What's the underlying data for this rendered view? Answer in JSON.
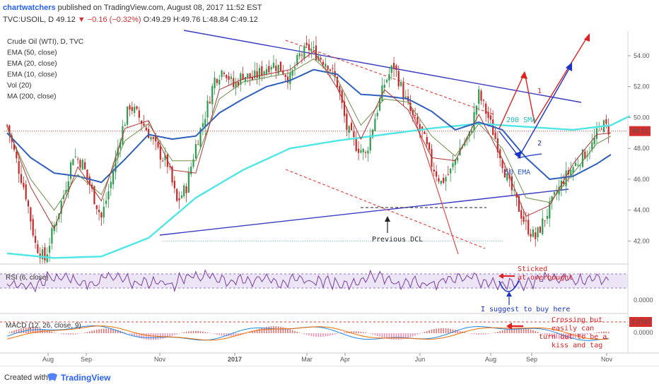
{
  "header": {
    "author": "chartwatchers",
    "published_text": "published on TradingView.com, August 08, 2017 11:52 EST",
    "symbol": "TVC:USOIL, D",
    "price": "49.12",
    "change": "−0.16 (−0.32%)",
    "ohlc": "O:49.29 H:49.76 L:48.84 C:49.12"
  },
  "legend": [
    "Crude Oil (WTI), D, TVC",
    "EMA (50, close)",
    "EMA (20, close)",
    "EMA (10, close)",
    "Vol (20)",
    "MA (200, close)"
  ],
  "price_label": "49.12",
  "macd_label": "1.0747",
  "panes": {
    "rsi_title": "RSI (6, close)",
    "macd_title": "MACD (12, 26, close, 9)"
  },
  "annotations": {
    "sma200": "200 SMA",
    "ema50": "50 EMA",
    "prev_dcl": "Previous DCL",
    "scenario1": "1",
    "scenario2": "2",
    "rsi_note": [
      "Sticked",
      "at overbought"
    ],
    "buy_note": "I suggest to buy here",
    "macd_note": [
      "Crossing but",
      "easily can",
      "turn out to be a",
      "kiss and tag"
    ]
  },
  "footer": {
    "created": "Created with",
    "brand": "TradingView"
  },
  "colors": {
    "up": "#2e9c4f",
    "down": "#c62828",
    "ema50": "#2f5fbd",
    "ema20": "#6f8f4a",
    "ema10": "#b23434",
    "ma200": "#4ee6e6",
    "trend": "#3b3bc4",
    "annotation_red": "#e02020",
    "annotation_blue": "#1a35c8"
  },
  "chart_data": {
    "type": "candlestick",
    "x_labels": [
      "Aug",
      "Sep",
      "Nov",
      "2017",
      "Mar",
      "Apr",
      "Jun",
      "Aug",
      "Sep",
      "Nov"
    ],
    "y_ticks": [
      42.0,
      44.0,
      46.0,
      48.0,
      50.0,
      52.0,
      54.0
    ],
    "ylim": [
      40.6,
      55.6
    ],
    "last_price": 49.12,
    "close_path": [
      [
        0,
        49.5
      ],
      [
        4,
        47.2
      ],
      [
        8,
        45.0
      ],
      [
        12,
        41.8
      ],
      [
        16,
        40.8
      ],
      [
        20,
        43.0
      ],
      [
        24,
        45.0
      ],
      [
        28,
        47.6
      ],
      [
        32,
        47.0
      ],
      [
        36,
        45.2
      ],
      [
        40,
        43.5
      ],
      [
        44,
        45.8
      ],
      [
        48,
        48.8
      ],
      [
        52,
        50.8
      ],
      [
        56,
        50.0
      ],
      [
        60,
        49.0
      ],
      [
        64,
        47.8
      ],
      [
        68,
        47.0
      ],
      [
        72,
        44.5
      ],
      [
        76,
        45.5
      ],
      [
        80,
        48.2
      ],
      [
        84,
        50.2
      ],
      [
        88,
        52.5
      ],
      [
        92,
        53.2
      ],
      [
        96,
        52.0
      ],
      [
        100,
        52.8
      ],
      [
        104,
        52.5
      ],
      [
        108,
        53.0
      ],
      [
        112,
        53.5
      ],
      [
        116,
        53.2
      ],
      [
        120,
        52.5
      ],
      [
        124,
        54.0
      ],
      [
        128,
        54.5
      ],
      [
        132,
        54.0
      ],
      [
        136,
        53.5
      ],
      [
        140,
        52.2
      ],
      [
        144,
        49.3
      ],
      [
        148,
        48.2
      ],
      [
        152,
        47.6
      ],
      [
        156,
        50.0
      ],
      [
        160,
        52.2
      ],
      [
        164,
        53.4
      ],
      [
        168,
        51.5
      ],
      [
        172,
        50.0
      ],
      [
        176,
        49.0
      ],
      [
        180,
        47.0
      ],
      [
        184,
        45.8
      ],
      [
        188,
        46.5
      ],
      [
        192,
        48.0
      ],
      [
        196,
        48.8
      ],
      [
        200,
        51.5
      ],
      [
        204,
        50.0
      ],
      [
        208,
        48.2
      ],
      [
        212,
        46.0
      ],
      [
        216,
        44.5
      ],
      [
        220,
        43.0
      ],
      [
        224,
        42.2
      ],
      [
        228,
        43.5
      ],
      [
        232,
        44.8
      ],
      [
        236,
        46.0
      ],
      [
        240,
        46.8
      ],
      [
        244,
        47.5
      ],
      [
        248,
        48.2
      ],
      [
        252,
        49.6
      ],
      [
        256,
        49.1
      ]
    ],
    "ema50_path": [
      [
        0,
        49.0
      ],
      [
        10,
        47.4
      ],
      [
        20,
        46.4
      ],
      [
        30,
        46.2
      ],
      [
        40,
        45.8
      ],
      [
        50,
        47.3
      ],
      [
        60,
        48.9
      ],
      [
        70,
        48.6
      ],
      [
        80,
        48.8
      ],
      [
        90,
        50.3
      ],
      [
        100,
        51.2
      ],
      [
        110,
        52.0
      ],
      [
        120,
        52.4
      ],
      [
        130,
        53.1
      ],
      [
        140,
        52.8
      ],
      [
        150,
        51.5
      ],
      [
        160,
        51.4
      ],
      [
        170,
        51.2
      ],
      [
        180,
        50.4
      ],
      [
        190,
        49.2
      ],
      [
        200,
        49.7
      ],
      [
        210,
        49.2
      ],
      [
        220,
        47.4
      ],
      [
        230,
        46.0
      ],
      [
        240,
        46.2
      ],
      [
        250,
        47.0
      ],
      [
        256,
        47.6
      ]
    ],
    "ema20_path": [
      [
        0,
        49.3
      ],
      [
        10,
        46.0
      ],
      [
        20,
        44.0
      ],
      [
        30,
        46.3
      ],
      [
        40,
        45.0
      ],
      [
        50,
        48.5
      ],
      [
        60,
        49.6
      ],
      [
        70,
        47.2
      ],
      [
        80,
        47.2
      ],
      [
        90,
        51.2
      ],
      [
        100,
        52.3
      ],
      [
        110,
        52.6
      ],
      [
        120,
        52.9
      ],
      [
        130,
        53.8
      ],
      [
        140,
        52.5
      ],
      [
        150,
        49.5
      ],
      [
        160,
        51.2
      ],
      [
        170,
        51.0
      ],
      [
        180,
        48.8
      ],
      [
        190,
        47.5
      ],
      [
        200,
        49.6
      ],
      [
        210,
        48.0
      ],
      [
        220,
        44.8
      ],
      [
        230,
        44.5
      ],
      [
        240,
        46.4
      ],
      [
        250,
        48.3
      ],
      [
        256,
        48.8
      ]
    ],
    "ema10_path": [
      [
        0,
        49.5
      ],
      [
        10,
        45.5
      ],
      [
        20,
        42.8
      ],
      [
        30,
        46.8
      ],
      [
        40,
        44.6
      ],
      [
        50,
        49.3
      ],
      [
        60,
        49.8
      ],
      [
        70,
        46.6
      ],
      [
        80,
        46.4
      ],
      [
        90,
        51.8
      ],
      [
        100,
        52.5
      ],
      [
        110,
        52.8
      ],
      [
        120,
        53.1
      ],
      [
        130,
        54.3
      ],
      [
        140,
        51.9
      ],
      [
        150,
        48.6
      ],
      [
        160,
        51.8
      ],
      [
        170,
        50.5
      ],
      [
        180,
        47.4
      ],
      [
        190,
        47.2
      ],
      [
        200,
        50.2
      ],
      [
        210,
        47.3
      ],
      [
        220,
        43.6
      ],
      [
        230,
        44.3
      ],
      [
        240,
        47.0
      ],
      [
        250,
        48.9
      ],
      [
        256,
        49.0
      ]
    ],
    "ma200_path": [
      [
        0,
        41.2
      ],
      [
        20,
        40.9
      ],
      [
        40,
        41.0
      ],
      [
        60,
        42.2
      ],
      [
        80,
        44.8
      ],
      [
        100,
        46.6
      ],
      [
        120,
        48.0
      ],
      [
        140,
        48.5
      ],
      [
        160,
        48.9
      ],
      [
        180,
        49.3
      ],
      [
        200,
        49.6
      ],
      [
        220,
        49.4
      ],
      [
        240,
        49.2
      ],
      [
        256,
        49.5
      ],
      [
        264,
        50.1
      ]
    ],
    "rsi_period": 6,
    "macd_params": [
      12,
      26,
      9
    ],
    "macd_last": 1.0747
  }
}
